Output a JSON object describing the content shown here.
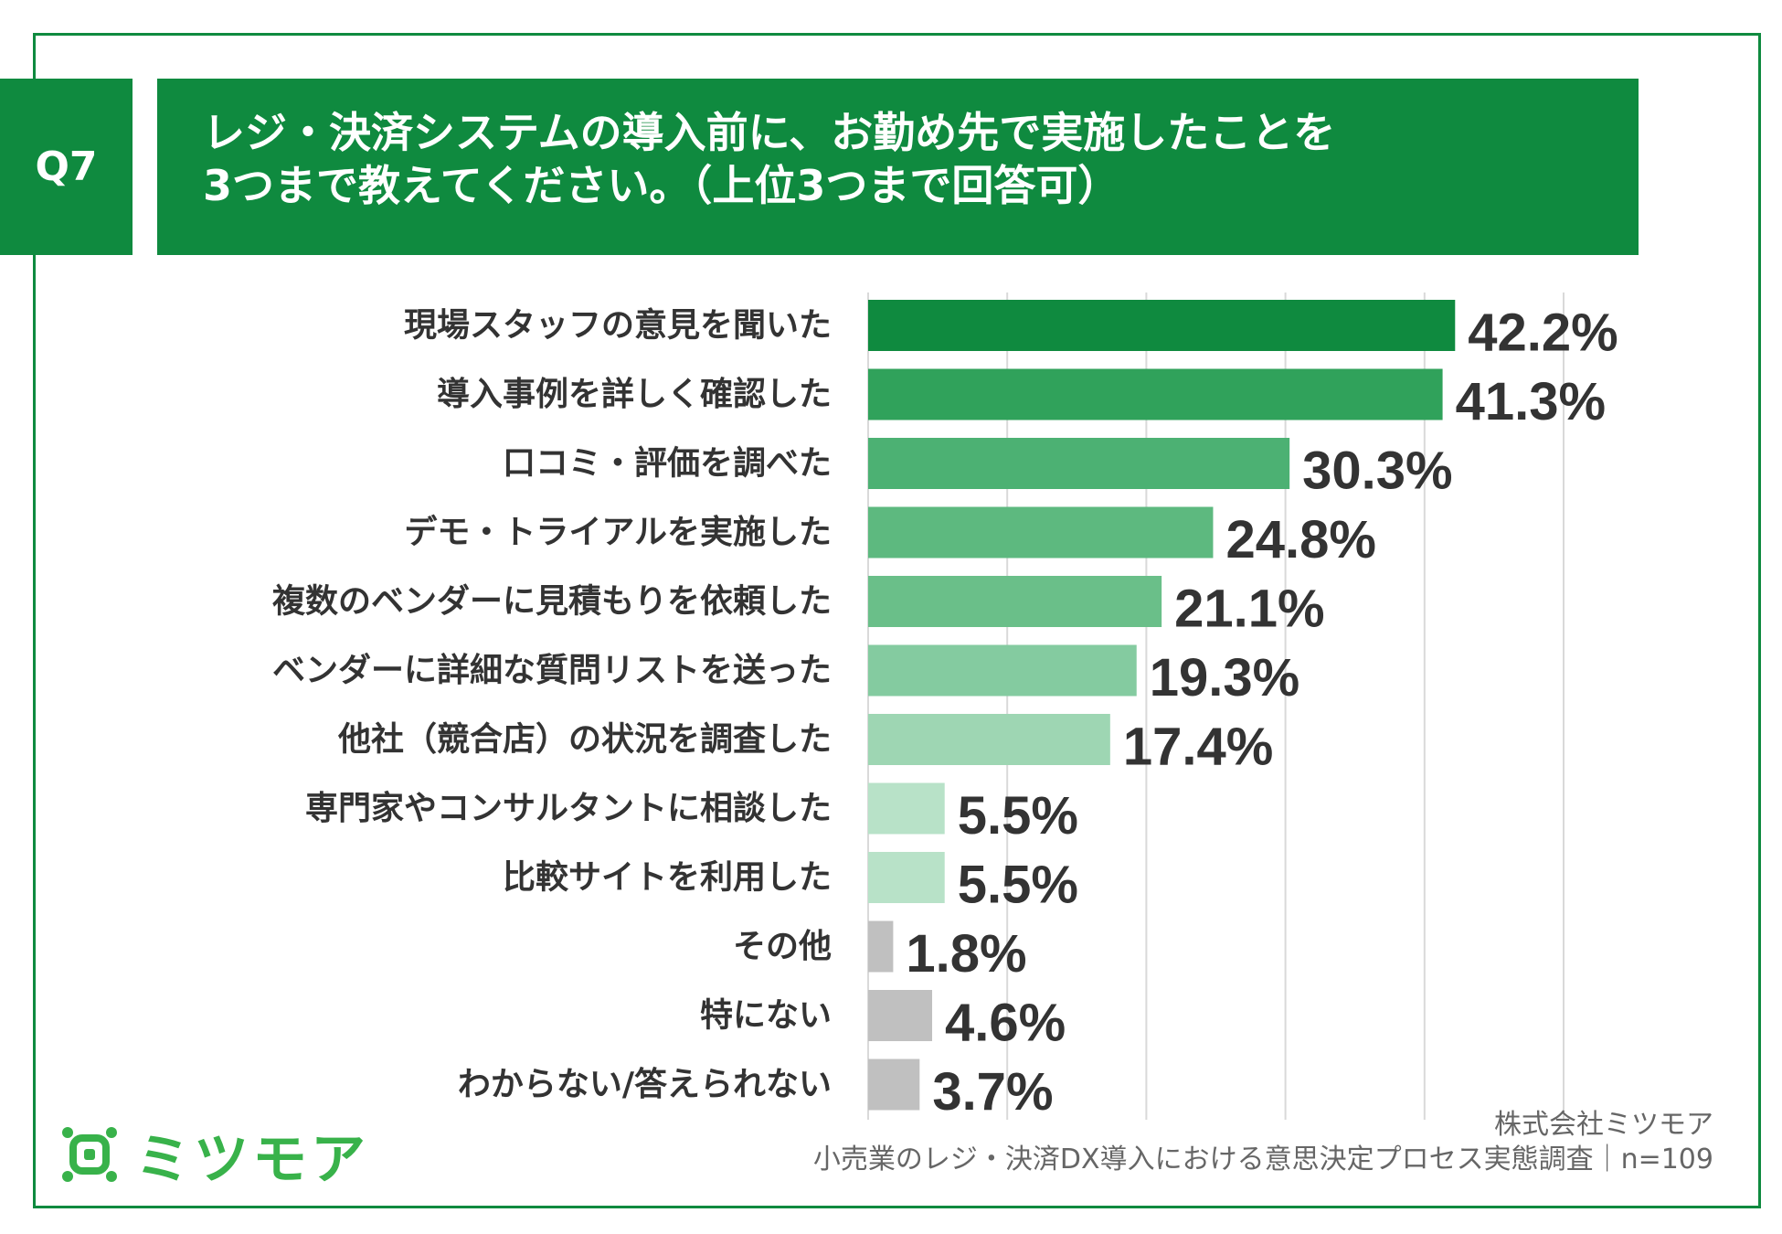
{
  "header": {
    "question_number": "Q7",
    "title_line1": "レジ・決済システムの導入前に、お勤め先で実施したことを",
    "title_line2": "3つまで教えてください。（上位3つまで回答可）"
  },
  "chart_data": {
    "type": "bar",
    "orientation": "horizontal",
    "title": "レジ・決済システムの導入前に、お勤め先で実施したことを3つまで教えてください。（上位3つまで回答可）",
    "categories": [
      "現場スタッフの意見を聞いた",
      "導入事例を詳しく確認した",
      "口コミ・評価を調べた",
      "デモ・トライアルを実施した",
      "複数のベンダーに見積もりを依頼した",
      "ベンダーに詳細な質問リストを送った",
      "他社（競合店）の状況を調査した",
      "専門家やコンサルタントに相談した",
      "比較サイトを利用した",
      "その他",
      "特にない",
      "わからない/答えられない"
    ],
    "values": [
      42.2,
      41.3,
      30.3,
      24.8,
      21.1,
      19.3,
      17.4,
      5.5,
      5.5,
      1.8,
      4.6,
      3.7
    ],
    "value_labels": [
      "42.2%",
      "41.3%",
      "30.3%",
      "24.8%",
      "21.1%",
      "19.3%",
      "17.4%",
      "5.5%",
      "5.5%",
      "1.8%",
      "4.6%",
      "3.7%"
    ],
    "colors": [
      "#0f8a3f",
      "#30a25b",
      "#4cb173",
      "#5db97f",
      "#6abf89",
      "#84cba0",
      "#9ed6b3",
      "#b8e2c8",
      "#b8e2c8",
      "#c0c0c0",
      "#c0c0c0",
      "#c0c0c0"
    ],
    "xlim": [
      0,
      50
    ],
    "grid": true,
    "unit": "%"
  },
  "brand": {
    "logo_text": "ミツモア",
    "logo_color": "#38b24a",
    "accent_color": "#0f8a3f"
  },
  "footer": {
    "company": "株式会社ミツモア",
    "source": "小売業のレジ・決済DX導入における意思決定プロセス実態調査｜n=109"
  }
}
